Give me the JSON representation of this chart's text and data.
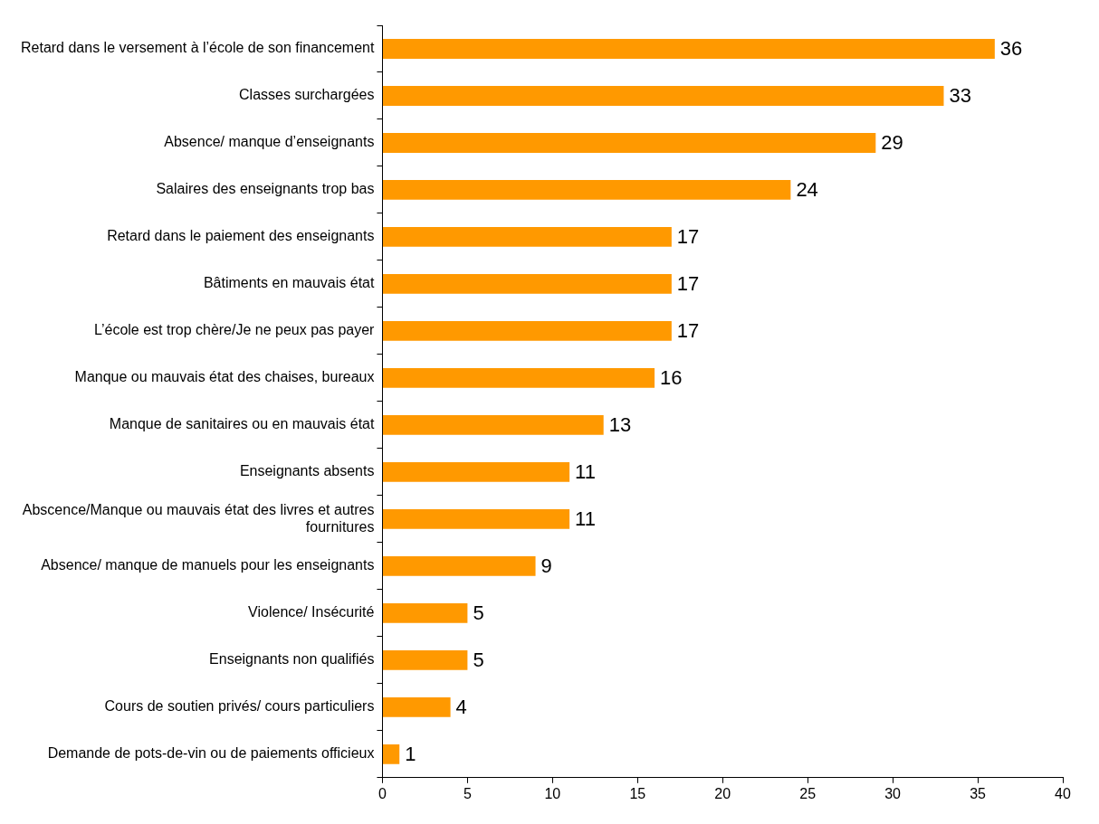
{
  "chart_data": {
    "type": "bar",
    "orientation": "horizontal",
    "categories": [
      "Retard dans le versement à l’école de son financement",
      "Classes surchargées",
      "Absence/ manque d’enseignants",
      "Salaires des enseignants trop bas",
      "Retard dans le paiement des enseignants",
      "Bâtiments en mauvais état",
      "L’école est trop chère/Je ne peux pas payer",
      "Manque ou mauvais état des chaises, bureaux",
      "Manque de sanitaires ou en mauvais état",
      "Enseignants absents",
      "Abscence/Manque ou mauvais état des livres et autres fournitures",
      "Absence/ manque de manuels pour les enseignants",
      "Violence/ Insécurité",
      "Enseignants non qualifiés",
      "Cours de soutien privés/ cours particuliers",
      "Demande de pots-de-vin ou de paiements officieux"
    ],
    "values": [
      36,
      33,
      29,
      24,
      17,
      17,
      17,
      16,
      13,
      11,
      11,
      9,
      5,
      5,
      4,
      1
    ],
    "color": "#ff9900",
    "xlim": [
      0,
      40
    ],
    "xticks": [
      0,
      5,
      10,
      15,
      20,
      25,
      30,
      35,
      40
    ],
    "grid": false,
    "data_labels": true
  }
}
